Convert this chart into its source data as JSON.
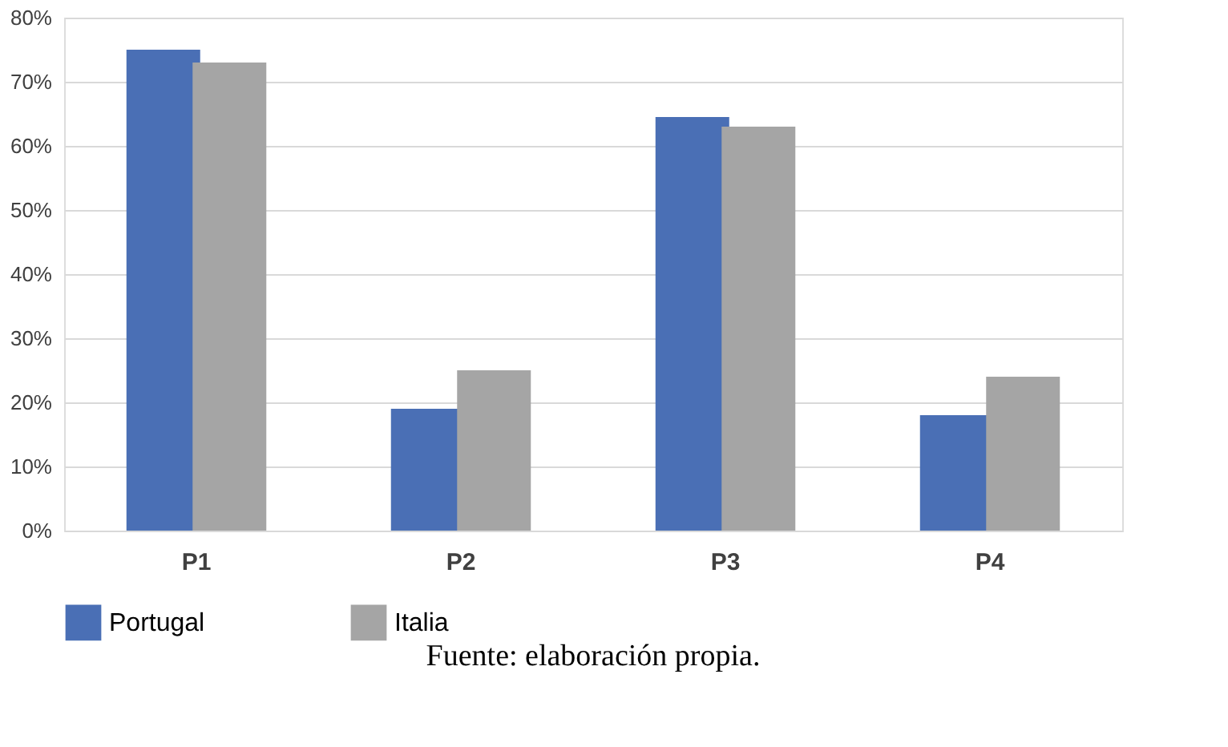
{
  "chart_data": {
    "type": "bar",
    "categories": [
      "P1",
      "P2",
      "P3",
      "P4"
    ],
    "series": [
      {
        "name": "Portugal",
        "color": "#4a6fb5",
        "values": [
          75,
          19,
          64.5,
          18
        ]
      },
      {
        "name": "Italia",
        "color": "#a5a5a5",
        "values": [
          73,
          25,
          63,
          24
        ]
      }
    ],
    "ylim": [
      0,
      80
    ],
    "yticks": [
      {
        "value": 0,
        "label": "0%"
      },
      {
        "value": 10,
        "label": "10%"
      },
      {
        "value": 20,
        "label": "20%"
      },
      {
        "value": 30,
        "label": "30%"
      },
      {
        "value": 40,
        "label": "40%"
      },
      {
        "value": 50,
        "label": "50%"
      },
      {
        "value": 60,
        "label": "60%"
      },
      {
        "value": 70,
        "label": "70%"
      },
      {
        "value": 80,
        "label": "80%"
      }
    ],
    "grid": "y",
    "legend": "bottom",
    "annotations": [
      "Fuente: elaboración propia."
    ]
  }
}
